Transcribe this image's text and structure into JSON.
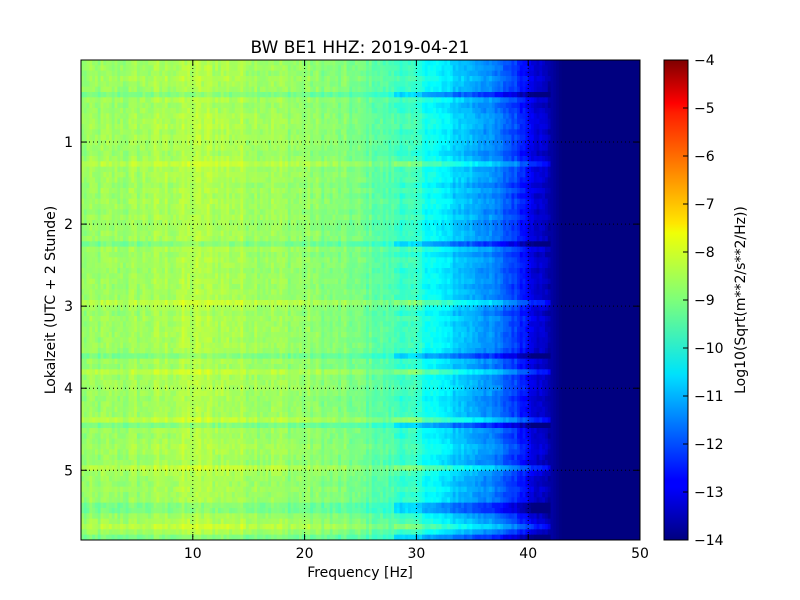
{
  "chart_data": {
    "type": "heatmap",
    "title": "BW BE1 HHZ: 2019-04-21",
    "xlabel": "Frequency [Hz]",
    "ylabel": "Lokalzeit (UTC + 2 Stunde)",
    "xlim": [
      0,
      50
    ],
    "ylim": [
      5.85,
      0
    ],
    "y_inverted": true,
    "grid": true,
    "x_ticks": [
      10,
      20,
      30,
      40,
      50
    ],
    "y_ticks": [
      1,
      2,
      3,
      4,
      5
    ],
    "colorbar": {
      "label": "Log10(Sqrt(m**2/s**2/Hz))",
      "colormap": "jet",
      "range": [
        -14,
        -4
      ],
      "ticks": [
        -4,
        -5,
        -6,
        -7,
        -8,
        -9,
        -10,
        -11,
        -12,
        -13,
        -14
      ]
    },
    "spectral_profile": {
      "frequencies_hz": [
        0,
        5,
        10,
        15,
        20,
        25,
        30,
        33,
        36,
        39,
        41,
        43,
        50
      ],
      "level_log10": [
        -8.8,
        -8.7,
        -8.5,
        -8.6,
        -8.8,
        -9.1,
        -9.8,
        -10.6,
        -11.2,
        -12.2,
        -13.2,
        -14.0,
        -14.0
      ]
    }
  }
}
